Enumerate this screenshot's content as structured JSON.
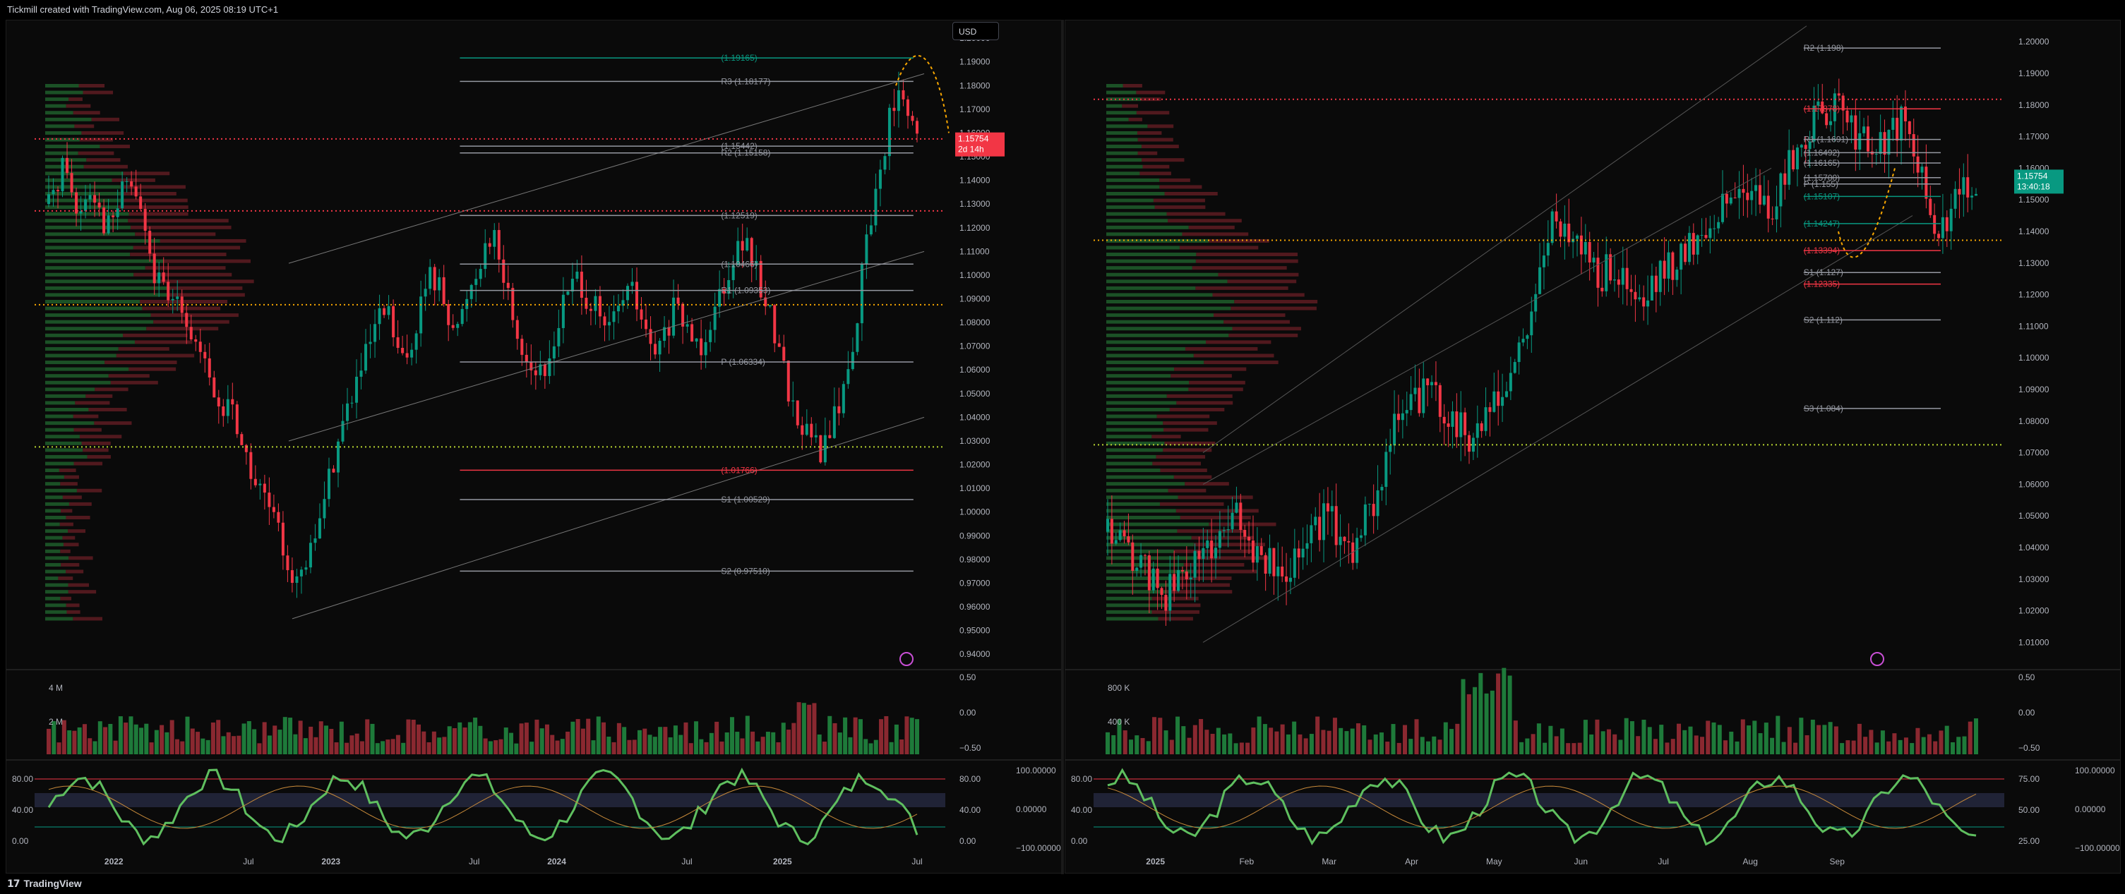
{
  "header": {
    "title": "Tickmill created with TradingView.com, Aug 06, 2025 08:19 UTC+1"
  },
  "footer": {
    "logo": "TradingView",
    "logo_glyph": "17"
  },
  "chart_data": [
    {
      "type": "candlestick",
      "currency_button": "USD",
      "price_axis": [
        "1.20000",
        "1.19000",
        "1.18000",
        "1.17000",
        "1.16000",
        "1.15000",
        "1.14000",
        "1.13000",
        "1.12000",
        "1.11000",
        "1.10000",
        "1.09000",
        "1.08000",
        "1.07000",
        "1.06000",
        "1.05000",
        "1.04000",
        "1.03000",
        "1.02000",
        "1.01000",
        "1.00000",
        "0.99000",
        "0.98000",
        "0.97000",
        "0.96000",
        "0.95000",
        "0.94000"
      ],
      "ylim": [
        0.935,
        1.2045
      ],
      "time_axis": [
        "2022",
        "Jul",
        "2023",
        "Jul",
        "2024",
        "Jul",
        "2025",
        "Jul"
      ],
      "time_axis_positions": [
        0.075,
        0.23,
        0.325,
        0.49,
        0.585,
        0.735,
        0.845,
        1.0
      ],
      "current_price": "1.15754",
      "countdown": "2d 14h",
      "close_approx": [
        1.13,
        1.14,
        1.15,
        1.125,
        1.132,
        1.14,
        1.125,
        1.12,
        1.13,
        1.14,
        1.135,
        1.12,
        1.1,
        1.095,
        1.085,
        1.095,
        1.08,
        1.07,
        1.06,
        1.05,
        1.04,
        1.05,
        1.03,
        1.02,
        1.01,
        1.005,
        0.995,
        0.985,
        0.975,
        0.97,
        0.98,
        0.995,
        1.01,
        1.025,
        1.04,
        1.05,
        1.06,
        1.07,
        1.08,
        1.085,
        1.07,
        1.06,
        1.075,
        1.09,
        1.1,
        1.095,
        1.085,
        1.075,
        1.09,
        1.1,
        1.11,
        1.12,
        1.105,
        1.09,
        1.075,
        1.065,
        1.06,
        1.055,
        1.07,
        1.085,
        1.095,
        1.1,
        1.09,
        1.085,
        1.075,
        1.08,
        1.09,
        1.095,
        1.085,
        1.07,
        1.065,
        1.075,
        1.085,
        1.08,
        1.075,
        1.07,
        1.08,
        1.09,
        1.1,
        1.11,
        1.115,
        1.105,
        1.095,
        1.085,
        1.07,
        1.055,
        1.04,
        1.035,
        1.03,
        1.025,
        1.035,
        1.045,
        1.06,
        1.08,
        1.11,
        1.13,
        1.15,
        1.17,
        1.175,
        1.165,
        1.1575
      ],
      "levels": [
        {
          "label": "(1.19165)",
          "price": 1.19165,
          "color": "#089981",
          "x0": 0.43,
          "x1": 0.86
        },
        {
          "label": "R3 (1.18177)",
          "price": 1.18177,
          "color": "#9598a1",
          "x0": 0.43,
          "x1": 0.86
        },
        {
          "label": "(1.15442)",
          "price": 1.15442,
          "color": "#9598a1",
          "x0": 0.43,
          "x1": 0.86
        },
        {
          "label": "R2 (1.15158)",
          "price": 1.15158,
          "color": "#9598a1",
          "x0": 0.43,
          "x1": 0.86
        },
        {
          "label": "(1.12519)",
          "price": 1.12519,
          "color": "#9598a1",
          "x0": 0.43,
          "x1": 0.86
        },
        {
          "label": "(1.10466)",
          "price": 1.10466,
          "color": "#9598a1",
          "x0": 0.43,
          "x1": 0.86
        },
        {
          "label": "R1 (1.09353)",
          "price": 1.09353,
          "color": "#9598a1",
          "x0": 0.43,
          "x1": 0.86
        },
        {
          "label": "P (1.06334)",
          "price": 1.06334,
          "color": "#9598a1",
          "x0": 0.43,
          "x1": 0.86
        },
        {
          "label": "(1.01766)",
          "price": 1.01766,
          "color": "#f23645",
          "x0": 0.43,
          "x1": 0.86
        },
        {
          "label": "S1 (1.00529)",
          "price": 1.00529,
          "color": "#9598a1",
          "x0": 0.43,
          "x1": 0.86
        },
        {
          "label": "S2 (0.97510)",
          "price": 0.9751,
          "color": "#9598a1",
          "x0": 0.43,
          "x1": 0.86
        }
      ],
      "volume_axis": [
        "4 M",
        "2 M"
      ],
      "volume_right_axis": [
        "0.50",
        "0.00",
        "−0.50"
      ],
      "osc_left_axis": [
        "80.00",
        "40.00",
        "0.00"
      ],
      "osc_right_axis": [
        "80.00",
        "40.00",
        "0.00"
      ],
      "osc_far_axis": [
        "100.00000",
        "0.00000",
        "−100.00000"
      ]
    },
    {
      "type": "candlestick",
      "price_axis": [
        "1.20000",
        "1.19000",
        "1.18000",
        "1.17000",
        "1.16000",
        "1.15000",
        "1.14000",
        "1.13000",
        "1.12000",
        "1.11000",
        "1.10000",
        "1.09000",
        "1.08000",
        "1.07000",
        "1.06000",
        "1.05000",
        "1.04000",
        "1.03000",
        "1.02000",
        "1.01000"
      ],
      "ylim": [
        1.0025,
        1.2045
      ],
      "time_axis": [
        "2025",
        "Feb",
        "Mar",
        "Apr",
        "May",
        "Jun",
        "Jul",
        "Aug",
        "Sep"
      ],
      "time_axis_positions": [
        0.055,
        0.16,
        0.255,
        0.35,
        0.445,
        0.545,
        0.64,
        0.74,
        0.84
      ],
      "current_price": "1.15754",
      "countdown": "13:40:18",
      "close_approx": [
        1.045,
        1.04,
        1.035,
        1.03,
        1.025,
        1.03,
        1.035,
        1.04,
        1.045,
        1.05,
        1.04,
        1.035,
        1.03,
        1.04,
        1.045,
        1.05,
        1.045,
        1.04,
        1.05,
        1.065,
        1.08,
        1.085,
        1.09,
        1.085,
        1.08,
        1.075,
        1.08,
        1.085,
        1.095,
        1.11,
        1.13,
        1.145,
        1.14,
        1.135,
        1.125,
        1.13,
        1.12,
        1.115,
        1.125,
        1.13,
        1.135,
        1.14,
        1.145,
        1.15,
        1.155,
        1.15,
        1.145,
        1.16,
        1.17,
        1.175,
        1.18,
        1.175,
        1.17,
        1.165,
        1.17,
        1.175,
        1.16,
        1.145,
        1.14,
        1.155,
        1.1575
      ],
      "levels": [
        {
          "label": "R2 (1.198)",
          "price": 1.198,
          "color": "#9598a1",
          "x0": 0.7,
          "x1": 0.83
        },
        {
          "label": "(1.17878)",
          "price": 1.17878,
          "color": "#f23645",
          "x0": 0.7,
          "x1": 0.83
        },
        {
          "label": "R1 (1.1691)",
          "price": 1.1691,
          "color": "#9598a1",
          "x0": 0.7,
          "x1": 0.83
        },
        {
          "label": "(1.16492)",
          "price": 1.16492,
          "color": "#9598a1",
          "x0": 0.7,
          "x1": 0.83
        },
        {
          "label": "(1.16165)",
          "price": 1.16165,
          "color": "#9598a1",
          "x0": 0.7,
          "x1": 0.83
        },
        {
          "label": "(1.15700)",
          "price": 1.157,
          "color": "#9598a1",
          "x0": 0.7,
          "x1": 0.83
        },
        {
          "label": "P (1.155)",
          "price": 1.155,
          "color": "#9598a1",
          "x0": 0.7,
          "x1": 0.83
        },
        {
          "label": "(1.15107)",
          "price": 1.15107,
          "color": "#089981",
          "x0": 0.7,
          "x1": 0.83
        },
        {
          "label": "(1.14247)",
          "price": 1.14247,
          "color": "#089981",
          "x0": 0.7,
          "x1": 0.83
        },
        {
          "label": "(1.13394)",
          "price": 1.13394,
          "color": "#f23645",
          "x0": 0.7,
          "x1": 0.83
        },
        {
          "label": "S1 (1.127)",
          "price": 1.127,
          "color": "#9598a1",
          "x0": 0.7,
          "x1": 0.83
        },
        {
          "label": "(1.12335)",
          "price": 1.12335,
          "color": "#f23645",
          "x0": 0.7,
          "x1": 0.83
        },
        {
          "label": "S2 (1.112)",
          "price": 1.112,
          "color": "#9598a1",
          "x0": 0.7,
          "x1": 0.83
        },
        {
          "label": "S3 (1.084)",
          "price": 1.084,
          "color": "#9598a1",
          "x0": 0.7,
          "x1": 0.83
        }
      ],
      "volume_axis": [
        "800 K",
        "400 K"
      ],
      "volume_right_axis": [
        "0.50",
        "0.00",
        "−0.50"
      ],
      "osc_left_axis": [
        "80.00",
        "40.00",
        "0.00"
      ],
      "osc_right_axis": [
        "75.00",
        "50.00",
        "25.00"
      ],
      "osc_far_axis": [
        "100.00000",
        "0.00000",
        "−100.00000"
      ]
    }
  ]
}
